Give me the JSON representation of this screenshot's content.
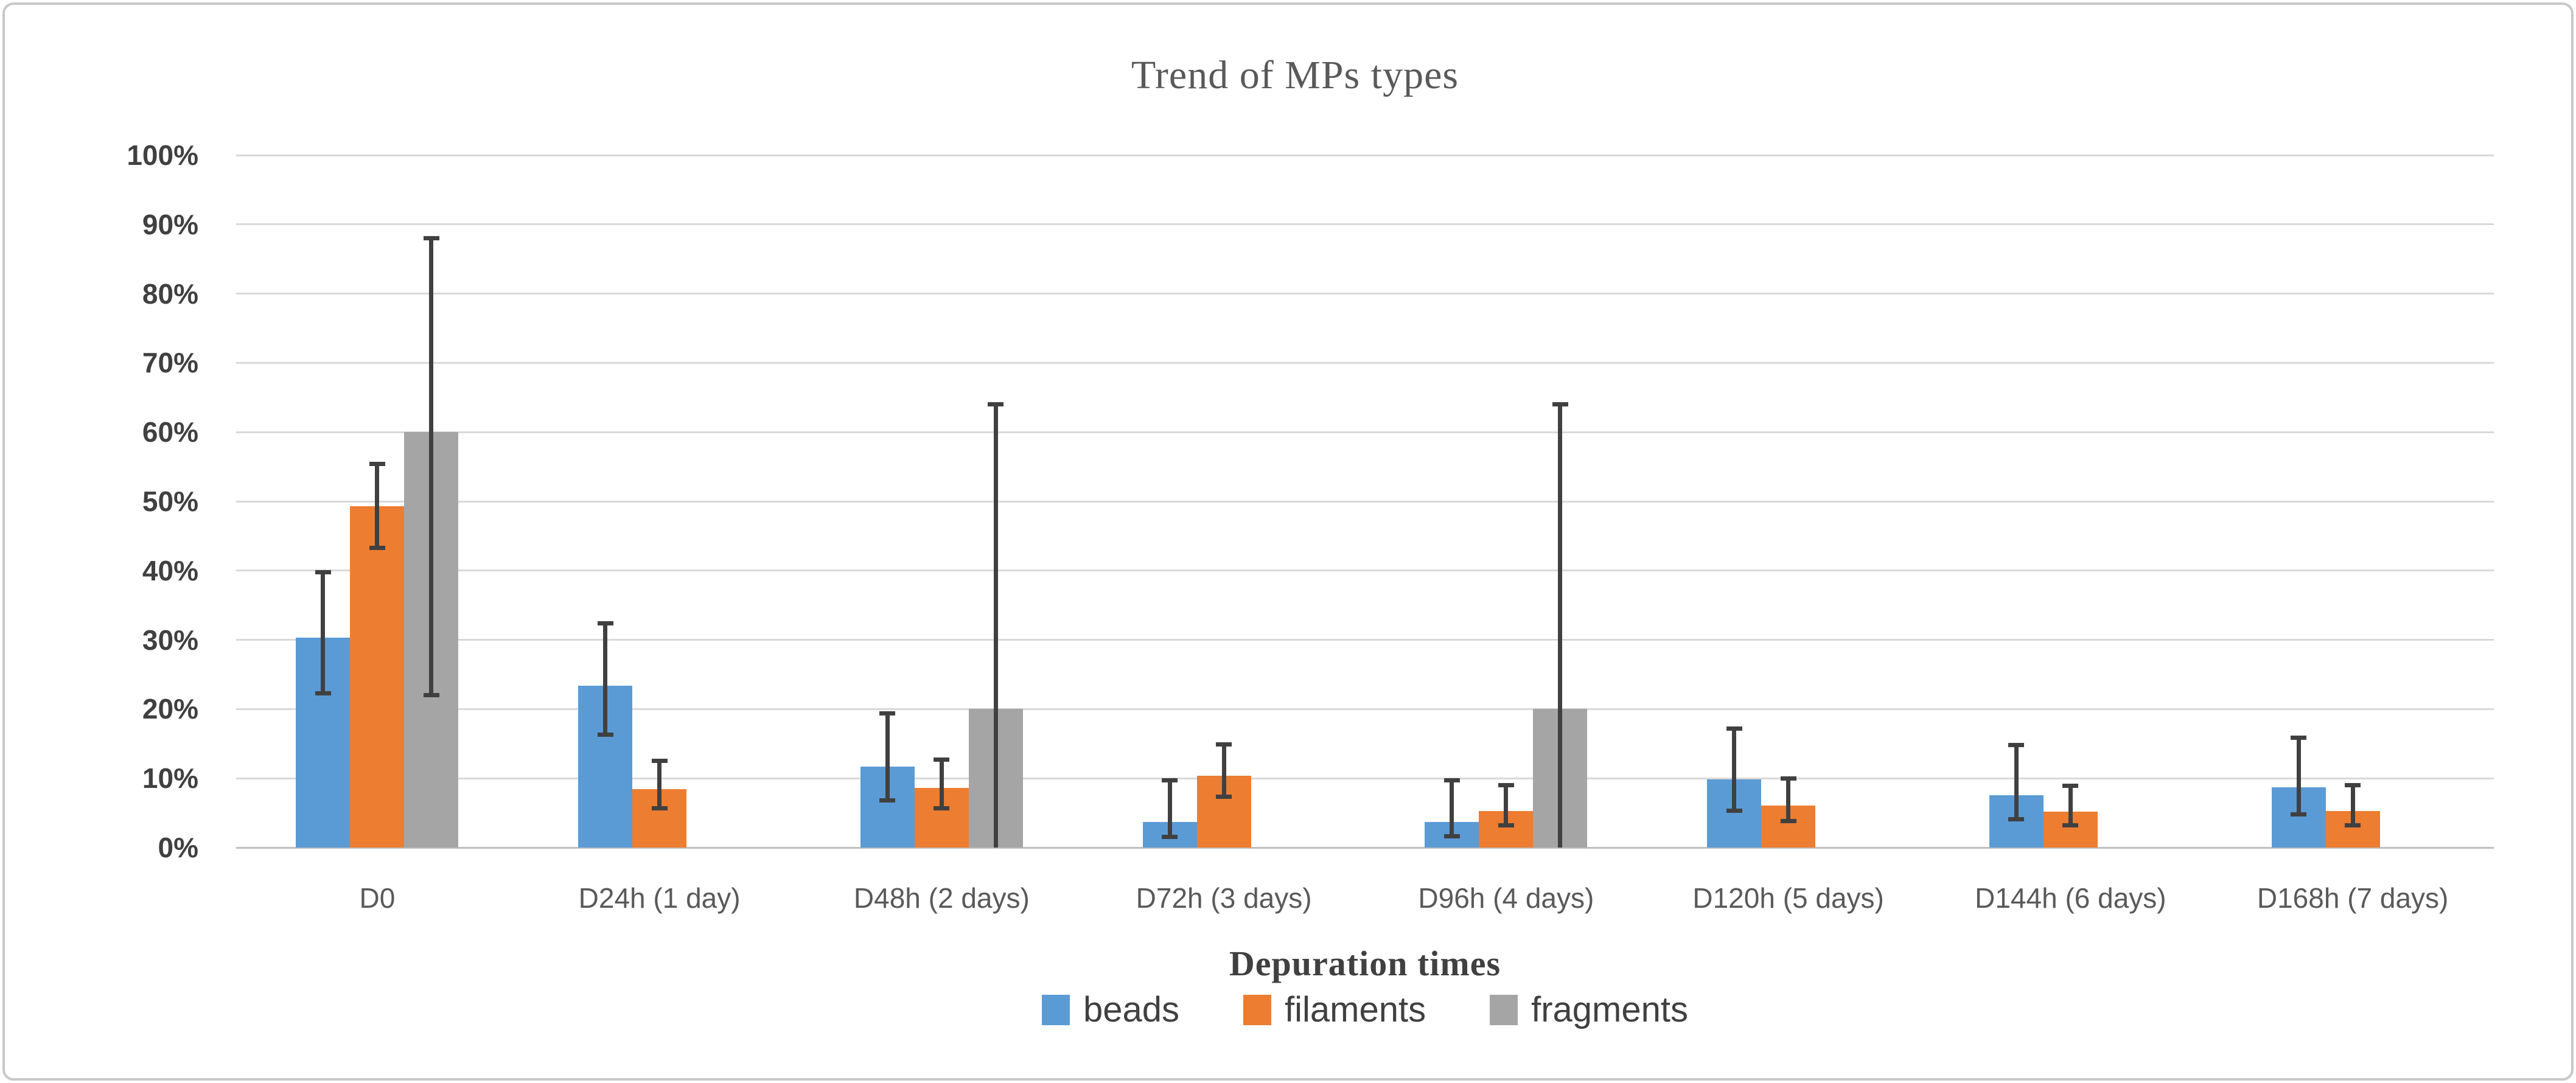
{
  "chart_data": {
    "type": "bar",
    "title": "Trend of MPs types",
    "xlabel": "Depuration times",
    "ylabel": "",
    "ylim": [
      0,
      100
    ],
    "y_tick_step": 10,
    "y_tick_suffix": "%",
    "grid": true,
    "legend_position": "bottom",
    "categories": [
      "D0",
      "D24h (1 day)",
      "D48h (2 days)",
      "D72h (3 days)",
      "D96h (4 days)",
      "D120h (5 days)",
      "D144h (6 days)",
      "D168h (7 days)"
    ],
    "series": [
      {
        "name": "beads",
        "color": "#5B9BD5",
        "values": [
          30.3,
          23.4,
          11.7,
          3.7,
          3.7,
          9.8,
          7.6,
          8.7
        ],
        "error_low": [
          22.3,
          16.3,
          6.8,
          1.5,
          1.6,
          5.3,
          4.1,
          4.8
        ],
        "error_high": [
          39.8,
          32.4,
          19.4,
          9.7,
          9.7,
          17.2,
          14.8,
          15.9
        ]
      },
      {
        "name": "filaments",
        "color": "#ED7D31",
        "values": [
          49.3,
          8.4,
          8.6,
          10.4,
          5.3,
          6.1,
          5.2,
          5.3
        ],
        "error_low": [
          43.3,
          5.7,
          5.7,
          7.3,
          3.2,
          3.8,
          3.2,
          3.2
        ],
        "error_high": [
          55.4,
          12.5,
          12.7,
          14.9,
          9.0,
          10.0,
          8.9,
          9.0
        ]
      },
      {
        "name": "fragments",
        "color": "#A5A5A5",
        "values": [
          60,
          0,
          20,
          0,
          20,
          0,
          0,
          0
        ],
        "error_low": [
          22,
          null,
          0,
          null,
          0,
          null,
          null,
          null
        ],
        "error_high": [
          88,
          null,
          64,
          null,
          64,
          null,
          null,
          null
        ]
      }
    ],
    "colors": {
      "gridline": "#D9D9D9",
      "axis_line": "#BFBFBF",
      "error_bar": "#404040",
      "title_text": "#595959",
      "xtick_text": "#595959",
      "ytick_text": "#404040",
      "axis_title_text": "#404040",
      "legend_text": "#404040",
      "figure_border": "#C8C8C8"
    }
  }
}
